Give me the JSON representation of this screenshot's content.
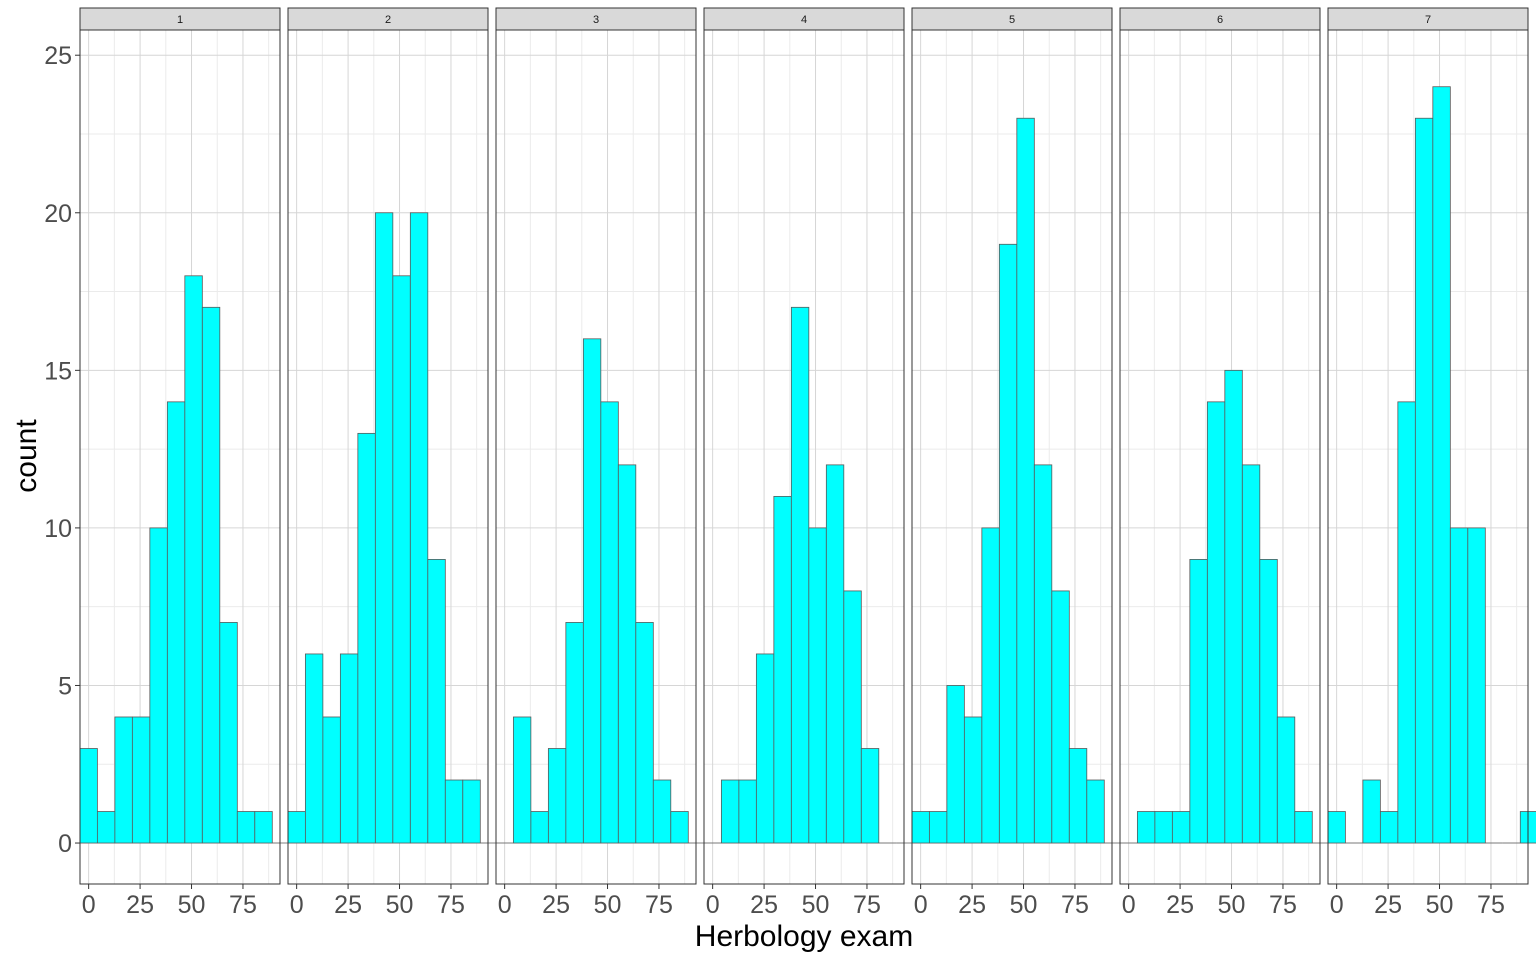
{
  "chart_data": {
    "type": "bar",
    "xlabel": "Herbology exam",
    "ylabel": "count",
    "x_ticks": [
      0,
      25,
      50,
      75
    ],
    "y_ticks": [
      0,
      5,
      10,
      15,
      20,
      25
    ],
    "xlim": [
      -4.2,
      93
    ],
    "ylim": [
      -1.3,
      25.8
    ],
    "bin_width": 8.5,
    "bin_starts": [
      -4.25,
      4.25,
      12.75,
      21.25,
      29.75,
      38.25,
      46.75,
      55.25,
      63.75,
      72.25,
      80.75,
      89.25
    ],
    "fill_color": "#00FFFF",
    "border_color": "#595959",
    "strip_color": "#D9D9D9",
    "grid": "on",
    "panels": [
      {
        "label": "1",
        "values": [
          3,
          1,
          4,
          4,
          10,
          14,
          18,
          17,
          7,
          1,
          1,
          0
        ]
      },
      {
        "label": "2",
        "values": [
          1,
          6,
          4,
          6,
          13,
          20,
          18,
          20,
          9,
          2,
          2,
          0
        ]
      },
      {
        "label": "3",
        "values": [
          0,
          4,
          1,
          3,
          7,
          16,
          14,
          12,
          7,
          2,
          1,
          0
        ]
      },
      {
        "label": "4",
        "values": [
          0,
          2,
          2,
          6,
          11,
          17,
          10,
          12,
          8,
          3,
          0,
          0
        ]
      },
      {
        "label": "5",
        "values": [
          1,
          1,
          5,
          4,
          10,
          19,
          23,
          12,
          8,
          3,
          2,
          0
        ]
      },
      {
        "label": "6",
        "values": [
          0,
          1,
          1,
          1,
          9,
          14,
          15,
          12,
          9,
          4,
          1,
          0
        ]
      },
      {
        "label": "7",
        "values": [
          1,
          0,
          2,
          1,
          14,
          23,
          24,
          10,
          10,
          0,
          0,
          1
        ]
      }
    ]
  }
}
